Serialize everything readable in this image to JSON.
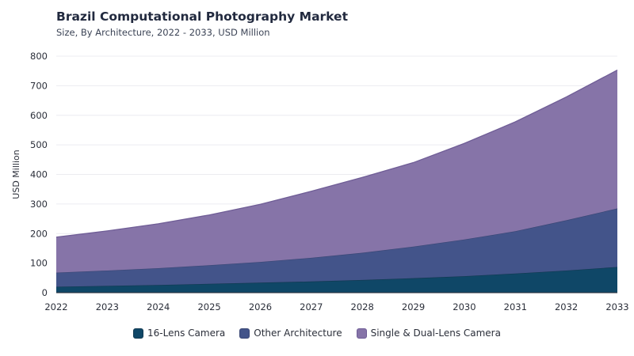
{
  "chart_data": {
    "type": "area",
    "stacked": true,
    "title": "Brazil Computational Photography Market",
    "subtitle": "Size, By Architecture, 2022 - 2033, USD Million",
    "ylabel": "USD Million",
    "xlabel": "",
    "ylim": [
      0,
      800
    ],
    "yticks": [
      0,
      100,
      200,
      300,
      400,
      500,
      600,
      700,
      800
    ],
    "categories": [
      "2022",
      "2023",
      "2024",
      "2025",
      "2026",
      "2027",
      "2028",
      "2029",
      "2030",
      "2031",
      "2032",
      "2033"
    ],
    "legend_position": "bottom",
    "grid": true,
    "series": [
      {
        "name": "16-Lens Camera",
        "color": "#0f4767",
        "edge": "#123a52",
        "values": [
          20,
          23,
          26,
          30,
          34,
          38,
          43,
          49,
          56,
          65,
          75,
          87
        ]
      },
      {
        "name": "Other Architecture",
        "color": "#43548a",
        "edge": "#3a4775",
        "values": [
          48,
          52,
          57,
          63,
          70,
          80,
          92,
          107,
          124,
          143,
          170,
          198
        ]
      },
      {
        "name": "Single & Dual-Lens Camera",
        "color": "#8674a8",
        "edge": "#6f5d96",
        "values": [
          120,
          134,
          150,
          170,
          195,
          225,
          255,
          284,
          325,
          370,
          417,
          468
        ]
      }
    ]
  }
}
